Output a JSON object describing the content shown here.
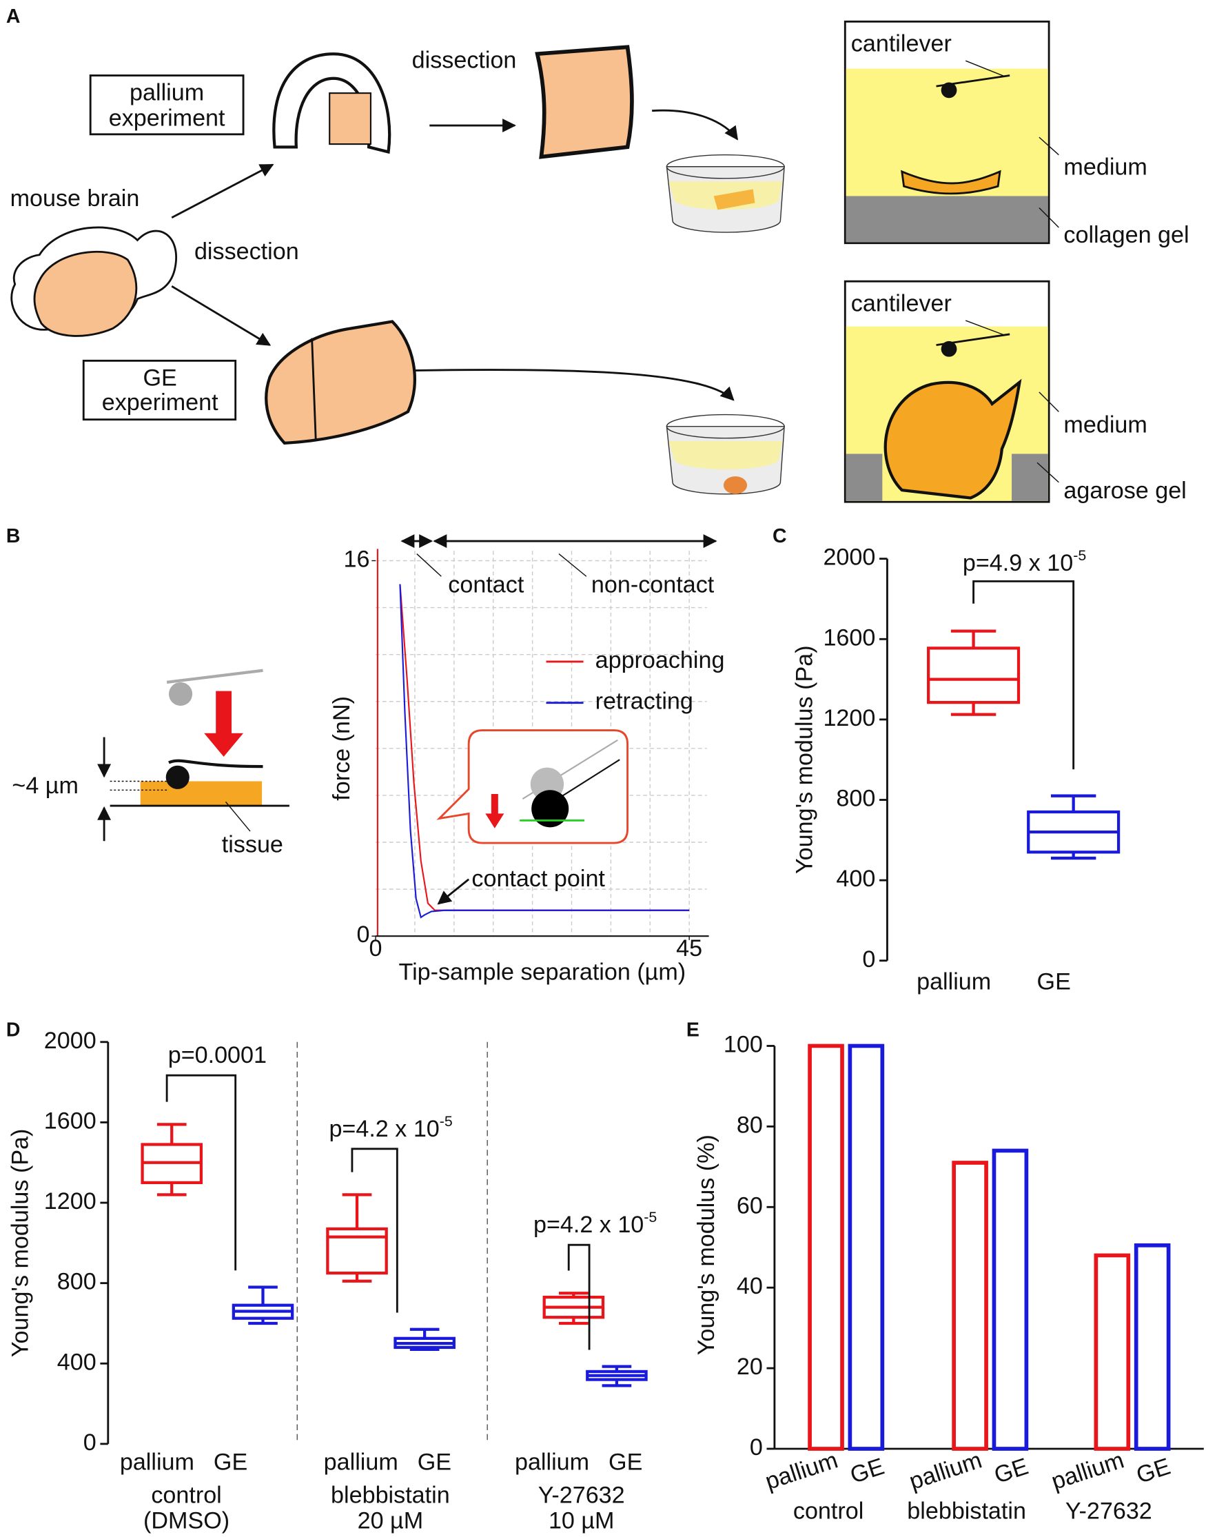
{
  "panel_labels": [
    "A",
    "B",
    "C",
    "D",
    "E"
  ],
  "panel_a": {
    "pallium_box": [
      "pallium",
      "experiment"
    ],
    "ge_box": [
      "GE",
      "experiment"
    ],
    "source": "mouse brain",
    "dissection_labels": [
      "dissection",
      "dissection"
    ],
    "top_chamber": {
      "cantilever": "cantilever",
      "medium": "medium",
      "gel": "collagen gel"
    },
    "bottom_chamber": {
      "cantilever": "cantilever",
      "medium": "medium",
      "gel": "agarose gel"
    }
  },
  "panel_b_schematic": {
    "indentation": "~4 µm",
    "tissue": "tissue"
  },
  "chart_data": [
    {
      "type": "line",
      "xlabel": "Tip-sample separation (µm)",
      "ylabel": "force (nN)",
      "xlim": [
        0,
        45
      ],
      "ylim": [
        0,
        16
      ],
      "xticks": [
        0,
        45
      ],
      "yticks": [
        0,
        16
      ],
      "annotations": [
        "contact",
        "non-contact",
        "contact point"
      ],
      "series": [
        {
          "name": "approaching",
          "color": "#e8151b",
          "x": [
            3.5,
            4.5,
            5.5,
            6.5,
            7.5,
            8.5,
            10,
            20,
            30,
            40,
            45
          ],
          "values": [
            15,
            11,
            6.5,
            3.2,
            1.4,
            1.1,
            1.1,
            1.1,
            1.1,
            1.1,
            1.1
          ]
        },
        {
          "name": "retracting",
          "color": "#1a1adb",
          "x": [
            3.5,
            4.2,
            5,
            5.8,
            6.5,
            7,
            8,
            10,
            20,
            30,
            45
          ],
          "values": [
            15,
            9.5,
            4.5,
            1.6,
            0.8,
            0.9,
            1.05,
            1.1,
            1.1,
            1.1,
            1.1
          ]
        }
      ]
    },
    {
      "type": "box",
      "ylabel": "Young's modulus (Pa)",
      "ylim": [
        0,
        2000
      ],
      "yticks": [
        0,
        400,
        800,
        1200,
        1600,
        2000
      ],
      "categories": [
        "pallium",
        "GE"
      ],
      "boxes": [
        {
          "color": "#e8151b",
          "min": 1225,
          "q1": 1285,
          "median": 1400,
          "q3": 1555,
          "max": 1640
        },
        {
          "color": "#1a1adb",
          "min": 510,
          "q1": 540,
          "median": 640,
          "q3": 740,
          "max": 820
        }
      ],
      "annotation": {
        "text": "p=4.9 x 10",
        "sup": "-5"
      }
    },
    {
      "type": "grouped_box",
      "ylabel": "Young's modulus (Pa)",
      "ylim": [
        0,
        2000
      ],
      "yticks": [
        0,
        400,
        800,
        1200,
        1600,
        2000
      ],
      "groups": [
        {
          "name": [
            "control",
            "(DMSO)"
          ],
          "annotation": {
            "text": "p=0.0001"
          },
          "boxes": [
            {
              "category": "pallium",
              "color": "#e8151b",
              "min": 1240,
              "q1": 1300,
              "median": 1400,
              "q3": 1490,
              "max": 1590
            },
            {
              "category": "GE",
              "color": "#1a1adb",
              "min": 600,
              "q1": 625,
              "median": 660,
              "q3": 690,
              "max": 780
            }
          ]
        },
        {
          "name": [
            "blebbistatin",
            "20 µM"
          ],
          "annotation": {
            "text": "p=4.2 x 10",
            "sup": "-5"
          },
          "boxes": [
            {
              "category": "pallium",
              "color": "#e8151b",
              "min": 810,
              "q1": 850,
              "median": 1030,
              "q3": 1070,
              "max": 1240
            },
            {
              "category": "GE",
              "color": "#1a1adb",
              "min": 470,
              "q1": 480,
              "median": 500,
              "q3": 525,
              "max": 570
            }
          ]
        },
        {
          "name": [
            "Y-27632",
            "10 µM"
          ],
          "annotation": {
            "text": "p=4.2 x 10",
            "sup": "-5"
          },
          "boxes": [
            {
              "category": "pallium",
              "color": "#e8151b",
              "min": 600,
              "q1": 630,
              "median": 680,
              "q3": 730,
              "max": 750
            },
            {
              "category": "GE",
              "color": "#1a1adb",
              "min": 290,
              "q1": 320,
              "median": 340,
              "q3": 360,
              "max": 385
            }
          ]
        }
      ]
    },
    {
      "type": "bar",
      "ylabel": "Young's modulus (%)",
      "ylim": [
        0,
        100
      ],
      "yticks": [
        0,
        20,
        40,
        60,
        80,
        100
      ],
      "categories": [
        "control",
        "blebbistatin",
        "Y-27632"
      ],
      "series": [
        {
          "name": "pallium",
          "color": "#e8151b",
          "values": [
            100,
            71,
            48
          ]
        },
        {
          "name": "GE",
          "color": "#1a1adb",
          "values": [
            100,
            74,
            50.5
          ]
        }
      ]
    }
  ]
}
